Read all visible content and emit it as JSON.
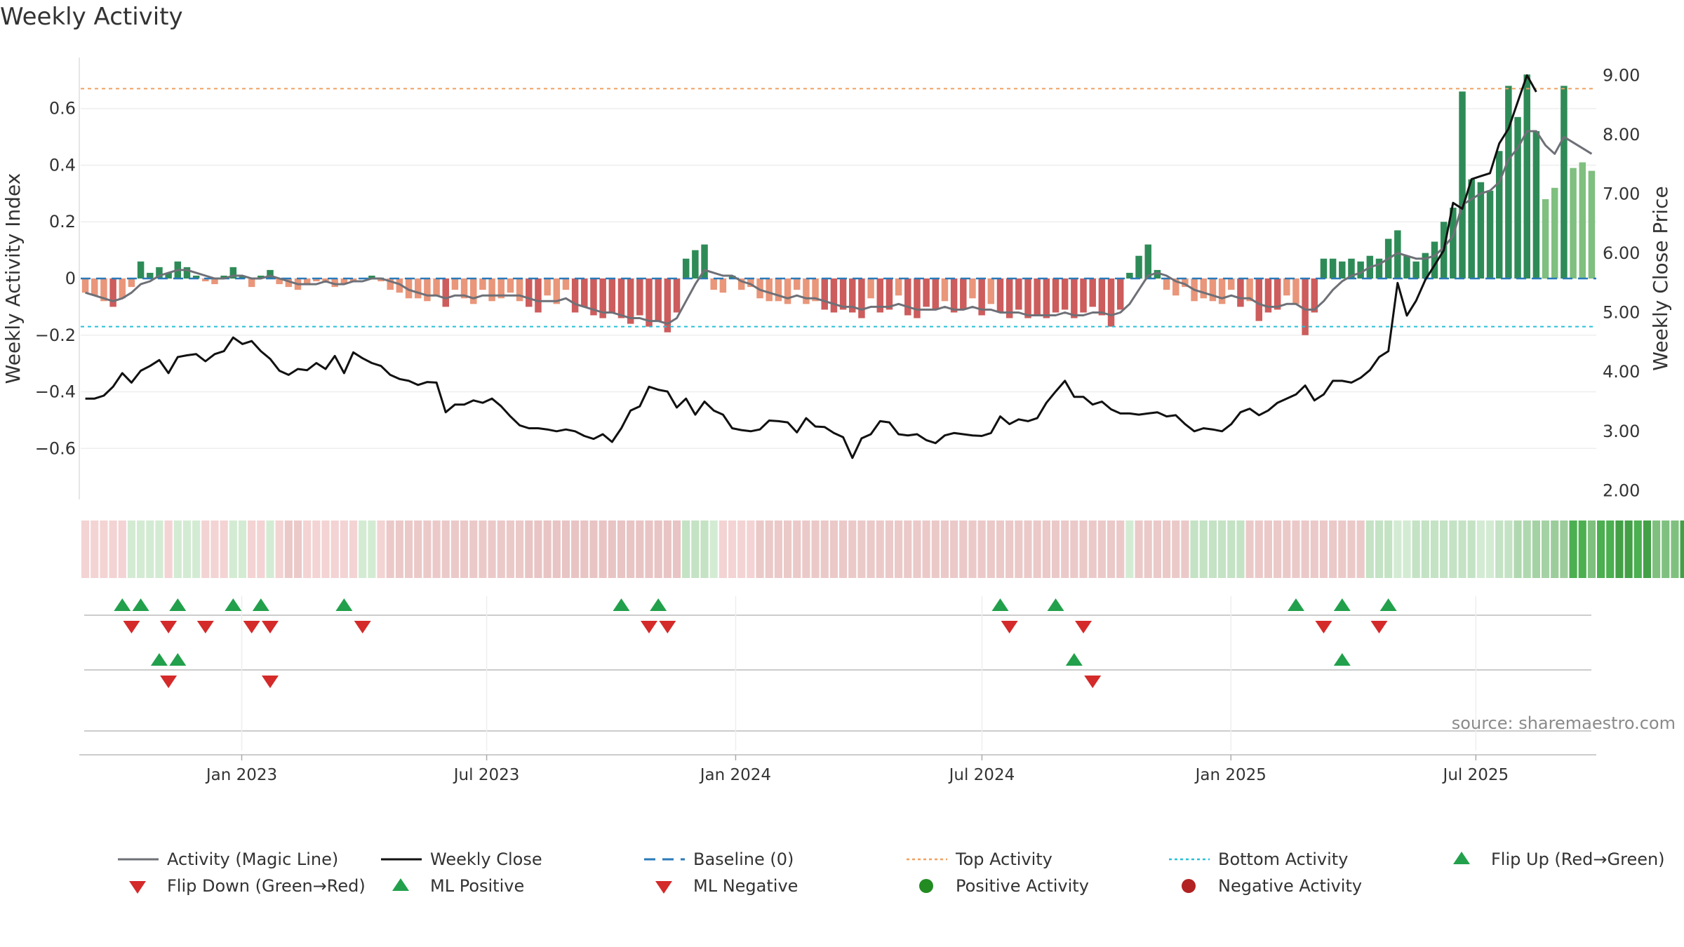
{
  "title": "Weekly Activity",
  "source": "source: sharemaestro.com",
  "colors": {
    "greenDark": "#2e8b57",
    "greenLight": "#7fbf7f",
    "redDark": "#cd5c5c",
    "redLight": "#e9967a",
    "magic": "#6e7077",
    "close": "#111111",
    "baseline": "#2a7ab8",
    "top": "#f0a060",
    "bottom": "#29c0d8",
    "upMarker": "#22a04b",
    "downMarker": "#d42a2a",
    "posDot": "#228b22",
    "negDot": "#b22222"
  },
  "chart_data": {
    "type": "bar",
    "title": "Weekly Activity",
    "ylabel": "Weekly Activity Index",
    "y2label": "Weekly Close Price",
    "ylim": [
      -0.78,
      0.78
    ],
    "y2lim": [
      1.85,
      9.3
    ],
    "yticks": [
      0.6,
      0.4,
      0.2,
      0,
      -0.2,
      -0.4,
      -0.6
    ],
    "ytick_labels": [
      "0.6",
      "0.4",
      "0.2",
      "0",
      "−0.2",
      "−0.4",
      "−0.6"
    ],
    "y2ticks": [
      9,
      8,
      7,
      6,
      5,
      4,
      3,
      2
    ],
    "y2tick_labels": [
      "9.00",
      "8.00",
      "7.00",
      "6.00",
      "5.00",
      "4.00",
      "3.00",
      "2.00"
    ],
    "x_start": "2022-09-04",
    "x_end": "2025-09-28",
    "xticks": [
      {
        "date": "2023-01-01",
        "label": "Jan 2023"
      },
      {
        "date": "2023-07-01",
        "label": "Jul 2023"
      },
      {
        "date": "2024-01-01",
        "label": "Jan 2024"
      },
      {
        "date": "2024-07-01",
        "label": "Jul 2024"
      },
      {
        "date": "2025-01-01",
        "label": "Jan 2025"
      },
      {
        "date": "2025-07-01",
        "label": "Jul 2025"
      }
    ],
    "top_activity": 0.67,
    "bottom_activity": -0.17,
    "baseline": 0,
    "activity": [
      -0.05,
      -0.06,
      -0.08,
      -0.1,
      -0.07,
      -0.03,
      0.06,
      0.02,
      0.04,
      0.02,
      0.06,
      0.04,
      0.01,
      -0.01,
      -0.02,
      0.01,
      0.04,
      0.01,
      -0.03,
      0.01,
      0.03,
      -0.02,
      -0.03,
      -0.04,
      -0.02,
      -0.01,
      -0.01,
      -0.03,
      -0.02,
      -0.01,
      0.0,
      0.01,
      -0.01,
      -0.04,
      -0.05,
      -0.07,
      -0.07,
      -0.08,
      -0.06,
      -0.1,
      -0.04,
      -0.07,
      -0.09,
      -0.04,
      -0.08,
      -0.07,
      -0.05,
      -0.08,
      -0.1,
      -0.12,
      -0.06,
      -0.09,
      -0.04,
      -0.12,
      -0.1,
      -0.13,
      -0.14,
      -0.12,
      -0.14,
      -0.16,
      -0.13,
      -0.17,
      -0.15,
      -0.19,
      -0.12,
      0.07,
      0.1,
      0.12,
      -0.04,
      -0.05,
      0.01,
      -0.04,
      -0.03,
      -0.07,
      -0.08,
      -0.08,
      -0.09,
      -0.04,
      -0.09,
      -0.08,
      -0.11,
      -0.12,
      -0.11,
      -0.12,
      -0.14,
      -0.07,
      -0.12,
      -0.11,
      -0.06,
      -0.13,
      -0.14,
      -0.1,
      -0.11,
      -0.08,
      -0.12,
      -0.11,
      -0.07,
      -0.13,
      -0.09,
      -0.12,
      -0.14,
      -0.11,
      -0.14,
      -0.13,
      -0.14,
      -0.12,
      -0.11,
      -0.14,
      -0.12,
      -0.1,
      -0.13,
      -0.17,
      -0.11,
      0.02,
      0.08,
      0.12,
      0.03,
      -0.04,
      -0.06,
      -0.03,
      -0.08,
      -0.07,
      -0.08,
      -0.09,
      -0.04,
      -0.1,
      -0.08,
      -0.15,
      -0.12,
      -0.11,
      -0.06,
      -0.09,
      -0.2,
      -0.12,
      0.07,
      0.07,
      0.06,
      0.07,
      0.06,
      0.08,
      0.07,
      0.14,
      0.17,
      0.08,
      0.06,
      0.09,
      0.13,
      0.2,
      0.25,
      0.66,
      0.35,
      0.34,
      0.31,
      0.45,
      0.68,
      0.57,
      0.72,
      0.52,
      0.28,
      0.32,
      0.68,
      0.39,
      0.41,
      0.38
    ],
    "magic_line": [
      -0.05,
      -0.06,
      -0.07,
      -0.08,
      -0.07,
      -0.05,
      -0.02,
      -0.01,
      0.01,
      0.02,
      0.03,
      0.03,
      0.02,
      0.01,
      0.0,
      0.0,
      0.01,
      0.01,
      0.0,
      0.0,
      0.01,
      0.0,
      -0.01,
      -0.02,
      -0.02,
      -0.02,
      -0.01,
      -0.02,
      -0.02,
      -0.01,
      -0.01,
      0.0,
      0.0,
      -0.01,
      -0.02,
      -0.04,
      -0.05,
      -0.06,
      -0.06,
      -0.07,
      -0.06,
      -0.06,
      -0.07,
      -0.06,
      -0.06,
      -0.06,
      -0.06,
      -0.06,
      -0.07,
      -0.08,
      -0.08,
      -0.08,
      -0.07,
      -0.09,
      -0.1,
      -0.11,
      -0.12,
      -0.12,
      -0.13,
      -0.14,
      -0.14,
      -0.15,
      -0.15,
      -0.16,
      -0.14,
      -0.08,
      -0.02,
      0.03,
      0.02,
      0.01,
      0.01,
      -0.01,
      -0.02,
      -0.04,
      -0.05,
      -0.06,
      -0.07,
      -0.06,
      -0.07,
      -0.07,
      -0.08,
      -0.09,
      -0.1,
      -0.1,
      -0.11,
      -0.1,
      -0.1,
      -0.1,
      -0.09,
      -0.1,
      -0.11,
      -0.11,
      -0.11,
      -0.1,
      -0.11,
      -0.11,
      -0.1,
      -0.11,
      -0.11,
      -0.12,
      -0.12,
      -0.12,
      -0.13,
      -0.13,
      -0.13,
      -0.13,
      -0.12,
      -0.13,
      -0.13,
      -0.12,
      -0.12,
      -0.13,
      -0.12,
      -0.09,
      -0.04,
      0.01,
      0.02,
      0.01,
      -0.01,
      -0.02,
      -0.04,
      -0.05,
      -0.06,
      -0.07,
      -0.06,
      -0.07,
      -0.07,
      -0.09,
      -0.1,
      -0.1,
      -0.09,
      -0.09,
      -0.11,
      -0.11,
      -0.08,
      -0.04,
      -0.01,
      0.01,
      0.02,
      0.04,
      0.05,
      0.07,
      0.09,
      0.08,
      0.07,
      0.07,
      0.08,
      0.11,
      0.15,
      0.26,
      0.28,
      0.3,
      0.31,
      0.34,
      0.42,
      0.46,
      0.52,
      0.52,
      0.47,
      0.44,
      0.5,
      0.48,
      0.46,
      0.44
    ],
    "weekly_close": [
      3.55,
      3.55,
      3.6,
      3.75,
      3.98,
      3.82,
      4.02,
      4.1,
      4.2,
      3.98,
      4.25,
      4.28,
      4.3,
      4.18,
      4.3,
      4.35,
      4.58,
      4.47,
      4.52,
      4.35,
      4.22,
      4.02,
      3.95,
      4.05,
      4.03,
      4.15,
      4.05,
      4.27,
      3.98,
      4.33,
      4.23,
      4.15,
      4.1,
      3.95,
      3.88,
      3.85,
      3.78,
      3.83,
      3.82,
      3.32,
      3.45,
      3.45,
      3.52,
      3.48,
      3.55,
      3.42,
      3.25,
      3.1,
      3.05,
      3.05,
      3.03,
      3.0,
      3.03,
      3.0,
      2.92,
      2.87,
      2.95,
      2.82,
      3.05,
      3.35,
      3.42,
      3.75,
      3.7,
      3.67,
      3.4,
      3.55,
      3.28,
      3.5,
      3.35,
      3.28,
      3.05,
      3.02,
      3.0,
      3.03,
      3.18,
      3.17,
      3.15,
      2.98,
      3.22,
      3.08,
      3.07,
      2.97,
      2.9,
      2.55,
      2.88,
      2.95,
      3.17,
      3.15,
      2.95,
      2.93,
      2.95,
      2.85,
      2.8,
      2.93,
      2.97,
      2.95,
      2.93,
      2.92,
      2.97,
      3.25,
      3.12,
      3.2,
      3.17,
      3.22,
      3.48,
      3.67,
      3.85,
      3.58,
      3.58,
      3.45,
      3.5,
      3.37,
      3.3,
      3.3,
      3.28,
      3.3,
      3.32,
      3.25,
      3.27,
      3.12,
      3.0,
      3.05,
      3.03,
      3.0,
      3.12,
      3.32,
      3.38,
      3.27,
      3.35,
      3.48,
      3.55,
      3.62,
      3.77,
      3.52,
      3.62,
      3.85,
      3.85,
      3.82,
      3.9,
      4.03,
      4.25,
      4.35,
      5.5,
      4.95,
      5.2,
      5.55,
      5.8,
      6.05,
      6.85,
      6.75,
      7.25,
      7.3,
      7.35,
      7.85,
      8.1,
      8.55,
      9.0,
      8.72
    ],
    "strip_colors": [
      "#f3d3d3",
      "#f3d3d3",
      "#f3d3d3",
      "#f3d3d3",
      "#f3d3d3",
      "#d3ebd3",
      "#d3ebd3",
      "#d3ebd3",
      "#d3ebd3",
      "#f3d3d3",
      "#d3ebd3",
      "#d3ebd3",
      "#d3ebd3",
      "#f3d3d3",
      "#f3d3d3",
      "#f3d3d3",
      "#d3ebd3",
      "#d3ebd3",
      "#f3d3d3",
      "#f3d3d3",
      "#d3ebd3",
      "#f3d3d3",
      "#ebc9c9",
      "#ebc9c9",
      "#f3d3d3",
      "#f3d3d3",
      "#f3d3d3",
      "#f3d3d3",
      "#f3d3d3",
      "#f3d3d3",
      "#d3ebd3",
      "#d3ebd3",
      "#f3d3d3",
      "#ebc9c9",
      "#ebc9c9",
      "#ebc9c9",
      "#ebc9c9",
      "#ebc9c9",
      "#ebc9c9",
      "#ebc9c9",
      "#ebc9c9",
      "#ebc9c9",
      "#ebc9c9",
      "#ebc9c9",
      "#ebc9c9",
      "#ebc9c9",
      "#ebc9c9",
      "#ebc9c9",
      "#e8c4c4",
      "#e8c4c4",
      "#e8c4c4",
      "#e8c4c4",
      "#e8c4c4",
      "#e8c4c4",
      "#e8c4c4",
      "#e8c4c4",
      "#e8c4c4",
      "#e8c4c4",
      "#e8c4c4",
      "#e8c4c4",
      "#e8c4c4",
      "#e8c4c4",
      "#e8c4c4",
      "#e8c4c4",
      "#e8c4c4",
      "#c4e2c4",
      "#c4e2c4",
      "#c4e2c4",
      "#d3ebd3",
      "#f3d3d3",
      "#f3d3d3",
      "#f3d3d3",
      "#f3d3d3",
      "#ebc9c9",
      "#ebc9c9",
      "#ebc9c9",
      "#ebc9c9",
      "#ebc9c9",
      "#ebc9c9",
      "#ebc9c9",
      "#ebc9c9",
      "#ebc9c9",
      "#ebc9c9",
      "#ebc9c9",
      "#ebc9c9",
      "#ebc9c9",
      "#ebc9c9",
      "#ebc9c9",
      "#ebc9c9",
      "#ebc9c9",
      "#ebc9c9",
      "#ebc9c9",
      "#ebc9c9",
      "#ebc9c9",
      "#ebc9c9",
      "#ebc9c9",
      "#ebc9c9",
      "#ebc9c9",
      "#ebc9c9",
      "#ebc9c9",
      "#ebc9c9",
      "#ebc9c9",
      "#ebc9c9",
      "#ebc9c9",
      "#ebc9c9",
      "#ebc9c9",
      "#ebc9c9",
      "#ebc9c9",
      "#ebc9c9",
      "#ebc9c9",
      "#ebc9c9",
      "#ebc9c9",
      "#ebc9c9",
      "#d3ebd3",
      "#ebc9c9",
      "#ebc9c9",
      "#ebc9c9",
      "#ebc9c9",
      "#ebc9c9",
      "#ebc9c9",
      "#c4e2c4",
      "#c4e2c4",
      "#c4e2c4",
      "#c4e2c4",
      "#c4e2c4",
      "#c4e2c4",
      "#ebc9c9",
      "#ebc9c9",
      "#ebc9c9",
      "#ebc9c9",
      "#ebc9c9",
      "#ebc9c9",
      "#ebc9c9",
      "#ebc9c9",
      "#ebc9c9",
      "#ebc9c9",
      "#ebc9c9",
      "#ebc9c9",
      "#ebc9c9",
      "#c4e2c4",
      "#c4e2c4",
      "#c4e2c4",
      "#d3ebd3",
      "#d3ebd3",
      "#c4e2c4",
      "#c4e2c4",
      "#c4e2c4",
      "#c4e2c4",
      "#c4e2c4",
      "#c4e2c4",
      "#c4e2c4",
      "#d3ebd3",
      "#d3ebd3",
      "#c4e2c4",
      "#c4e2c4",
      "#b0d8b0",
      "#b0d8b0",
      "#a5d2a5",
      "#a5d2a5",
      "#9ccc9c",
      "#9ccc9c",
      "#4caf50",
      "#4caf50",
      "#7fc07f",
      "#4caf50",
      "#4caf50",
      "#43a047",
      "#43a047",
      "#4caf50",
      "#43a047",
      "#7fc07f",
      "#7fc07f",
      "#7fc07f",
      "#43a047",
      "#7fc07f",
      "#7fc07f"
    ],
    "row1_up": [
      4,
      6,
      10,
      16,
      19,
      28,
      58,
      62,
      99,
      105,
      131,
      136,
      141
    ],
    "row1_down": [
      5,
      9,
      13,
      18,
      20,
      30,
      61,
      63,
      100,
      108,
      134,
      140
    ],
    "row2_up": [
      8,
      10,
      107,
      136
    ],
    "row2_down": [
      9,
      20,
      109
    ],
    "row3_up": [],
    "row3_down": []
  },
  "legend": [
    {
      "label": "Activity (Magic Line)",
      "icon": "magic-line-icon",
      "color": "#6e7077"
    },
    {
      "label": "Weekly Close",
      "icon": "close-line-icon",
      "color": "#111111"
    },
    {
      "label": "Baseline (0)",
      "icon": "baseline-dash-icon",
      "color": "#2a7ab8"
    },
    {
      "label": "Top Activity",
      "icon": "top-dotted-icon",
      "color": "#f0a060"
    },
    {
      "label": "Bottom Activity",
      "icon": "bottom-dotted-icon",
      "color": "#29c0d8"
    },
    {
      "label": "Flip Up (Red→Green)",
      "icon": "triangle-up-icon",
      "color": "#22a04b"
    },
    {
      "label": "Flip Down (Green→Red)",
      "icon": "triangle-down-icon",
      "color": "#d42a2a"
    },
    {
      "label": "ML Positive",
      "icon": "triangle-up-icon",
      "color": "#22a04b"
    },
    {
      "label": "ML Negative",
      "icon": "triangle-down-icon",
      "color": "#d42a2a"
    },
    {
      "label": "Positive Activity",
      "icon": "circle-icon",
      "color": "#228b22"
    },
    {
      "label": "Negative Activity",
      "icon": "circle-icon",
      "color": "#b22222"
    }
  ]
}
